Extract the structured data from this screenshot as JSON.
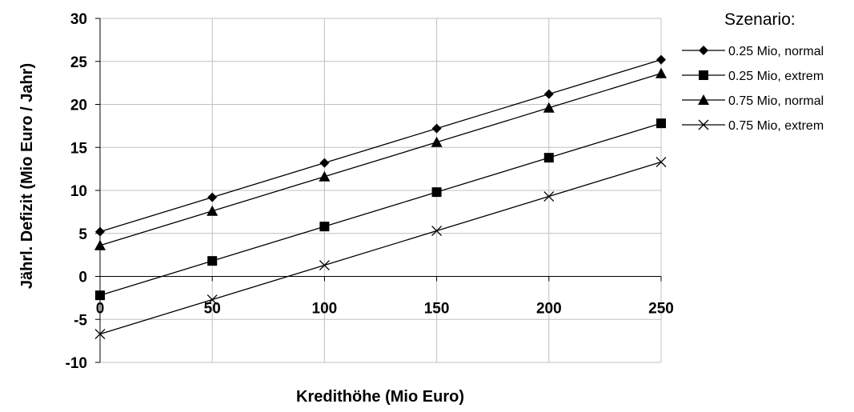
{
  "chart_data": {
    "type": "line",
    "xlabel": "Kredithöhe (Mio Euro)",
    "ylabel": "Jährl. Defizit (Mio Euro / Jahr)",
    "x": [
      0,
      50,
      100,
      150,
      200,
      250
    ],
    "xlim": [
      0,
      250
    ],
    "ylim": [
      -10,
      30
    ],
    "x_ticks": [
      "0",
      "50",
      "100",
      "150",
      "200",
      "250"
    ],
    "y_ticks": [
      "30",
      "25",
      "20",
      "15",
      "10",
      "5",
      "0",
      "-5",
      "-10"
    ],
    "grid": true,
    "legend": {
      "title": "Szenario:",
      "placement": "right"
    },
    "series": [
      {
        "name": "0.25 Mio, normal",
        "marker": "diamond",
        "color": "#000000",
        "values": [
          5.2,
          9.2,
          13.2,
          17.2,
          21.2,
          25.2
        ]
      },
      {
        "name": "0.25 Mio, extrem",
        "marker": "square",
        "color": "#000000",
        "values": [
          -2.2,
          1.8,
          5.8,
          9.8,
          13.8,
          17.8
        ]
      },
      {
        "name": "0.75 Mio, normal",
        "marker": "triangle",
        "color": "#000000",
        "values": [
          3.6,
          7.6,
          11.6,
          15.6,
          19.6,
          23.6
        ]
      },
      {
        "name": "0.75 Mio, extrem",
        "marker": "x",
        "color": "#000000",
        "values": [
          -6.7,
          -2.7,
          1.3,
          5.3,
          9.3,
          13.3
        ]
      }
    ]
  }
}
